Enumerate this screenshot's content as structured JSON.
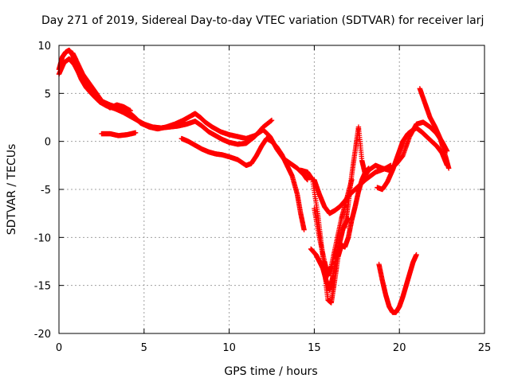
{
  "chart_data": {
    "type": "scatter",
    "title": "Day 271 of 2019, Sidereal Day-to-day VTEC variation (SDTVAR) for receiver larj",
    "xlabel": "GPS time / hours",
    "ylabel": "SDTVAR / TECUs",
    "xlim": [
      0,
      25
    ],
    "ylim": [
      -20,
      10
    ],
    "xticks": [
      0,
      5,
      10,
      15,
      20,
      25
    ],
    "yticks": [
      -20,
      -15,
      -10,
      -5,
      0,
      5,
      10
    ],
    "grid": true,
    "marker": "plus",
    "color": "#ff0000",
    "traces": [
      {
        "x": [
          0.0,
          0.2,
          0.4,
          0.6,
          0.8,
          1.0,
          1.3,
          1.6,
          2.0,
          2.4,
          2.8,
          3.3,
          3.8,
          4.2,
          4.6,
          5.0,
          5.5,
          6.0,
          6.5,
          7.0,
          7.5,
          8.0,
          8.4,
          8.8,
          9.2,
          9.6,
          10.0,
          10.5,
          11.0,
          11.5,
          12.0,
          12.5
        ],
        "y": [
          7.5,
          8.8,
          9.3,
          9.5,
          9.0,
          7.8,
          6.5,
          5.6,
          4.8,
          4.1,
          3.7,
          3.4,
          3.0,
          2.6,
          2.2,
          1.8,
          1.5,
          1.4,
          1.5,
          1.6,
          1.8,
          2.1,
          1.6,
          1.0,
          0.6,
          0.2,
          -0.1,
          -0.3,
          -0.2,
          0.5,
          1.5,
          2.2
        ]
      },
      {
        "x": [
          0.0,
          0.3,
          0.6,
          0.9,
          1.2,
          1.6,
          2.0,
          2.5,
          3.0,
          3.5,
          4.0,
          4.4,
          4.8,
          5.3,
          5.8,
          6.3,
          6.8,
          7.3,
          7.8,
          8.0,
          8.3,
          8.6,
          9.0,
          9.5,
          10.0,
          10.5,
          11.0,
          11.5,
          12.0,
          12.4,
          12.8,
          13.2,
          13.6,
          14.0,
          14.4,
          14.6
        ],
        "y": [
          7.0,
          8.2,
          8.6,
          8.0,
          7.0,
          6.0,
          5.0,
          4.2,
          3.8,
          3.5,
          3.2,
          2.6,
          1.9,
          1.5,
          1.3,
          1.5,
          1.8,
          2.2,
          2.7,
          2.9,
          2.5,
          2.0,
          1.5,
          1.0,
          0.7,
          0.5,
          0.3,
          0.6,
          1.2,
          0.5,
          -0.8,
          -1.8,
          -2.3,
          -2.8,
          -3.5,
          -4.0
        ]
      },
      {
        "x": [
          0.8,
          1.0,
          1.4,
          1.8,
          2.2,
          2.6,
          3.0,
          3.4,
          3.8,
          4.2
        ],
        "y": [
          9.2,
          8.5,
          7.0,
          6.0,
          5.0,
          4.0,
          3.5,
          3.8,
          3.6,
          3.2
        ]
      },
      {
        "x": [
          2.5,
          3.0,
          3.5,
          4.0,
          4.5
        ],
        "y": [
          0.8,
          0.8,
          0.6,
          0.7,
          0.9
        ]
      },
      {
        "x": [
          7.2,
          7.6,
          8.0,
          8.4,
          8.8,
          9.2,
          9.6,
          10.0,
          10.5,
          11.0,
          11.3,
          11.6,
          11.9,
          12.2,
          12.5,
          12.8,
          13.1,
          13.4,
          13.7,
          14.0,
          14.2,
          14.4
        ],
        "y": [
          0.3,
          0.0,
          -0.4,
          -0.8,
          -1.1,
          -1.3,
          -1.4,
          -1.6,
          -1.9,
          -2.5,
          -2.3,
          -1.5,
          -0.5,
          0.3,
          0.0,
          -0.6,
          -1.4,
          -2.5,
          -3.6,
          -5.5,
          -7.5,
          -9.2
        ]
      },
      {
        "x": [
          14.2,
          14.6,
          14.9,
          15.2,
          15.4,
          15.6,
          15.8,
          16.0,
          16.2,
          16.4,
          16.6,
          16.8,
          17.0,
          17.2,
          17.4,
          17.6,
          17.8,
          18.0,
          18.2
        ],
        "y": [
          -3.0,
          -3.2,
          -4.0,
          -7.5,
          -10.5,
          -13.5,
          -16.5,
          -16.8,
          -14.5,
          -12.0,
          -10.8,
          -11.0,
          -10.0,
          -8.2,
          -6.8,
          -5.2,
          -4.0,
          -3.2,
          -2.8
        ]
      },
      {
        "x": [
          15.0,
          15.3,
          15.6,
          15.8,
          16.0,
          16.3,
          16.6,
          16.9,
          17.2
        ],
        "y": [
          -7.0,
          -10.0,
          -12.5,
          -14.0,
          -13.0,
          -10.5,
          -8.0,
          -6.0,
          -4.0
        ]
      },
      {
        "x": [
          14.8,
          15.1,
          15.3,
          15.5,
          15.7,
          15.9,
          16.1,
          16.3,
          16.5,
          16.7,
          17.0
        ],
        "y": [
          -11.2,
          -11.8,
          -12.5,
          -13.2,
          -14.5,
          -15.5,
          -14.0,
          -12.0,
          -10.5,
          -9.0,
          -8.0
        ]
      },
      {
        "x": [
          15.0,
          15.3,
          15.6,
          15.9,
          16.2,
          16.5,
          16.8,
          17.1,
          17.4,
          17.7,
          18.0,
          18.3,
          18.6,
          18.9,
          19.2,
          19.5
        ],
        "y": [
          -4.0,
          -5.5,
          -6.8,
          -7.5,
          -7.2,
          -6.8,
          -6.2,
          -5.5,
          -5.0,
          -4.5,
          -4.0,
          -3.6,
          -3.2,
          -3.0,
          -2.8,
          -2.5
        ]
      },
      {
        "x": [
          16.8,
          17.0,
          17.2,
          17.4,
          17.6,
          17.8,
          18.0,
          18.2,
          18.6,
          19.0,
          19.4,
          19.8,
          20.2,
          20.6,
          21.0,
          21.4,
          21.8,
          22.2,
          22.5,
          22.8
        ],
        "y": [
          -9.0,
          -6.5,
          -3.5,
          -1.0,
          1.5,
          -2.0,
          -3.5,
          -3.0,
          -2.5,
          -2.8,
          -3.0,
          -2.4,
          -1.5,
          0.5,
          1.8,
          2.0,
          1.5,
          0.8,
          0.0,
          -1.0
        ]
      },
      {
        "x": [
          18.7,
          19.0,
          19.3,
          19.6,
          19.8,
          20.0,
          20.2,
          20.5,
          20.8,
          21.0,
          21.3,
          21.6,
          21.9,
          22.2,
          22.5,
          22.8
        ],
        "y": [
          -4.8,
          -5.0,
          -4.2,
          -3.0,
          -2.0,
          -1.0,
          0.0,
          0.8,
          1.2,
          1.4,
          1.0,
          0.5,
          0.0,
          -0.5,
          -1.2,
          -2.5
        ]
      },
      {
        "x": [
          18.8,
          19.0,
          19.2,
          19.4,
          19.6,
          19.8,
          20.0,
          20.2,
          20.4,
          20.6,
          20.8,
          21.0
        ],
        "y": [
          -12.8,
          -14.5,
          -16.0,
          -17.2,
          -17.8,
          -17.8,
          -17.2,
          -16.2,
          -15.0,
          -13.8,
          -12.6,
          -11.8
        ]
      },
      {
        "x": [
          21.2,
          21.5,
          21.8,
          22.1,
          22.4,
          22.7,
          22.9
        ],
        "y": [
          5.5,
          4.0,
          2.5,
          1.5,
          0.3,
          -1.5,
          -2.8
        ]
      }
    ]
  }
}
